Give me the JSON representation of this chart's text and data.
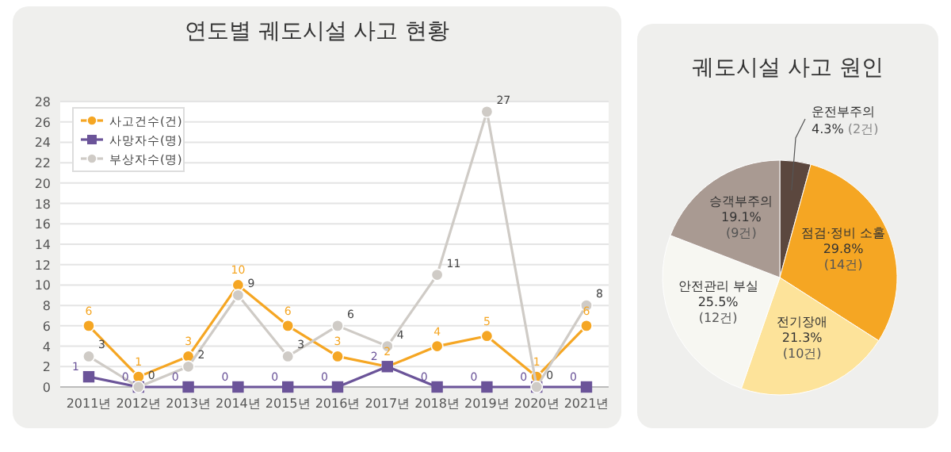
{
  "chart_data": [
    {
      "type": "line",
      "title": "연도별 궤도시설 사고 현황",
      "categories": [
        "2011년",
        "2012년",
        "2013년",
        "2014년",
        "2015년",
        "2016년",
        "2017년",
        "2018년",
        "2019년",
        "2020년",
        "2021년"
      ],
      "series": [
        {
          "name": "사고건수(건)",
          "color": "#f5a623",
          "marker": "circle",
          "values": [
            6,
            1,
            3,
            10,
            6,
            3,
            2,
            4,
            5,
            1,
            6
          ]
        },
        {
          "name": "사망자수(명)",
          "color": "#6b5499",
          "marker": "square",
          "values": [
            1,
            0,
            0,
            0,
            0,
            0,
            2,
            0,
            0,
            0,
            0
          ]
        },
        {
          "name": "부상자수(명)",
          "color": "#cfcbc6",
          "marker": "circle",
          "values": [
            3,
            0,
            2,
            9,
            3,
            6,
            4,
            11,
            27,
            0,
            8
          ]
        }
      ],
      "ylim": [
        0,
        28
      ],
      "yticks": [
        0,
        2,
        4,
        6,
        8,
        10,
        12,
        14,
        16,
        18,
        20,
        22,
        24,
        26,
        28
      ],
      "grid": "y",
      "legend": "top left",
      "data_labels": true
    },
    {
      "type": "pie",
      "title": "궤도시설 사고 원인",
      "categories": [
        "운전부주의",
        "점검·정비 소홀",
        "전기장애",
        "안전관리 부실",
        "승객부주의"
      ],
      "values": [
        2,
        14,
        10,
        12,
        9
      ],
      "colors": [
        "#5b473e",
        "#f5a623",
        "#fde39a",
        "#f7f7f2",
        "#a99a92"
      ],
      "value_labels": [
        "4.3% (2건)",
        "29.8% (14건)",
        "21.3% (10건)",
        "25.5% (12건)",
        "19.1% (9건)"
      ]
    }
  ]
}
